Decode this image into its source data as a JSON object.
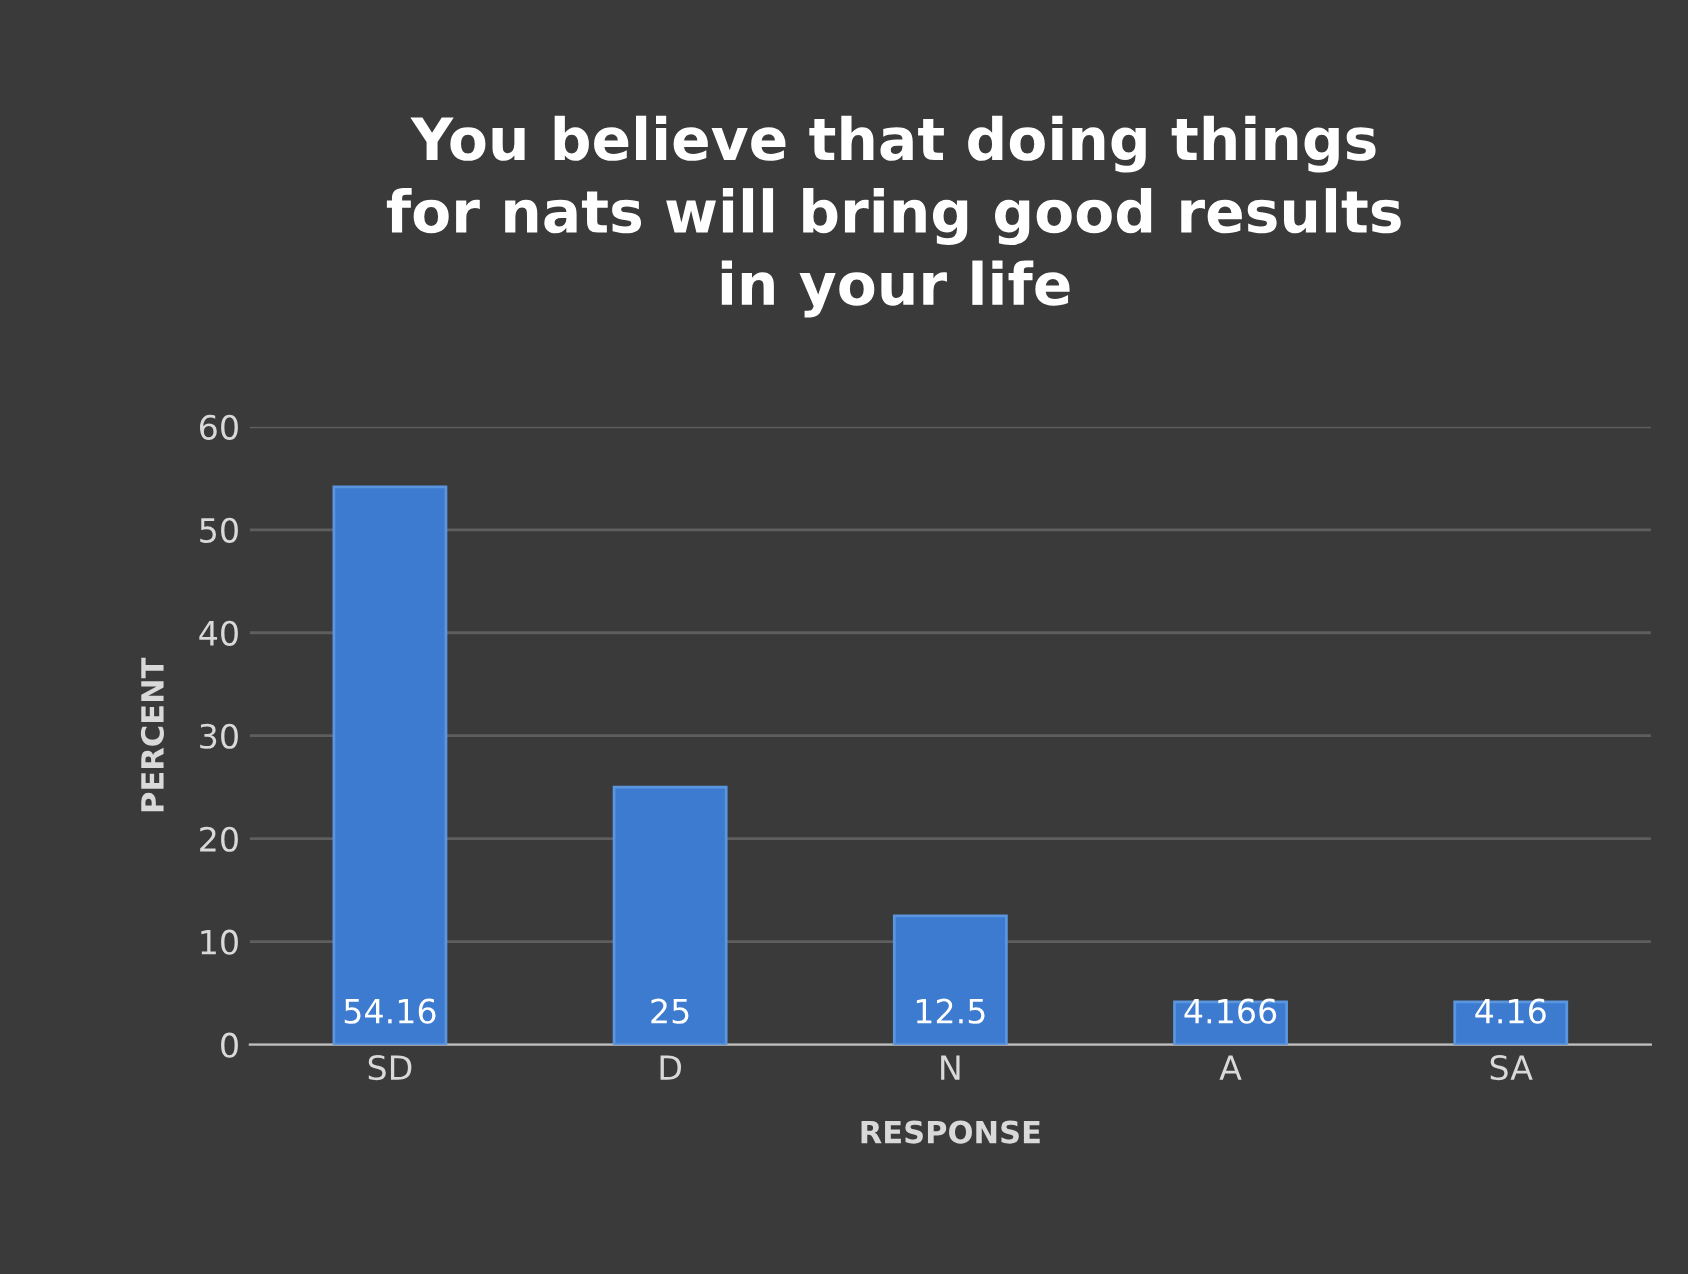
{
  "chart_data": {
    "type": "bar",
    "title": "You believe that doing things\nfor nats will bring good results\nin your life",
    "xlabel": "RESPONSE",
    "ylabel": "PERCENT",
    "categories": [
      "SD",
      "D",
      "N",
      "A",
      "SA"
    ],
    "values": [
      54.16,
      25,
      12.5,
      4.166,
      4.16
    ],
    "color": "#3d7bd0",
    "ylim": [
      0,
      60
    ],
    "yticks": [
      0,
      10,
      20,
      30,
      40,
      50,
      60
    ],
    "grid": "y",
    "data_labels": true
  }
}
